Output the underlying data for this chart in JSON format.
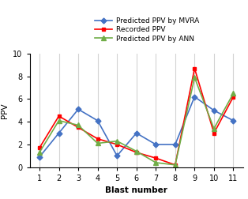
{
  "blast_numbers": [
    1,
    2,
    3,
    4,
    5,
    6,
    7,
    8,
    9,
    10,
    11
  ],
  "mvra": [
    0.9,
    3.0,
    5.1,
    4.1,
    1.0,
    3.0,
    2.0,
    2.0,
    6.2,
    5.0,
    4.1
  ],
  "recorded": [
    1.7,
    4.5,
    3.5,
    2.5,
    2.0,
    1.3,
    0.8,
    0.2,
    8.7,
    3.0,
    6.2
  ],
  "ann": [
    1.3,
    4.1,
    3.7,
    2.1,
    2.3,
    1.4,
    0.4,
    0.2,
    7.9,
    3.4,
    6.5
  ],
  "mvra_color": "#4472C4",
  "recorded_color": "#FF0000",
  "ann_color": "#70AD47",
  "mvra_label": "Predicted PPV by MVRA",
  "recorded_label": "Recorded PPV",
  "ann_label": "Predicted PPV by ANN",
  "xlabel": "Blast number",
  "ylabel": "PPV",
  "ylim": [
    0,
    10
  ],
  "yticks": [
    0,
    2,
    4,
    6,
    8,
    10
  ],
  "title": ""
}
